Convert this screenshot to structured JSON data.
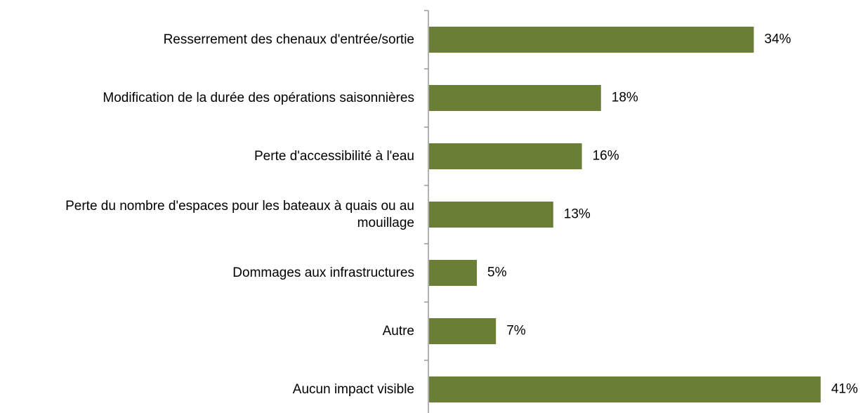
{
  "chart_data": {
    "type": "bar",
    "orientation": "horizontal",
    "categories": [
      "Resserrement des chenaux d'entrée/sortie",
      "Modification de la durée des opérations saisonnières",
      "Perte d'accessibilité à l'eau",
      "Perte du nombre d'espaces pour les bateaux à quais ou au mouillage",
      "Dommages aux infrastructures",
      "Autre",
      "Aucun impact visible"
    ],
    "values": [
      34,
      18,
      16,
      13,
      5,
      7,
      41
    ],
    "value_labels": [
      "34%",
      "18%",
      "16%",
      "13%",
      "5%",
      "7%",
      "41%"
    ],
    "color": "#6a7f35"
  }
}
